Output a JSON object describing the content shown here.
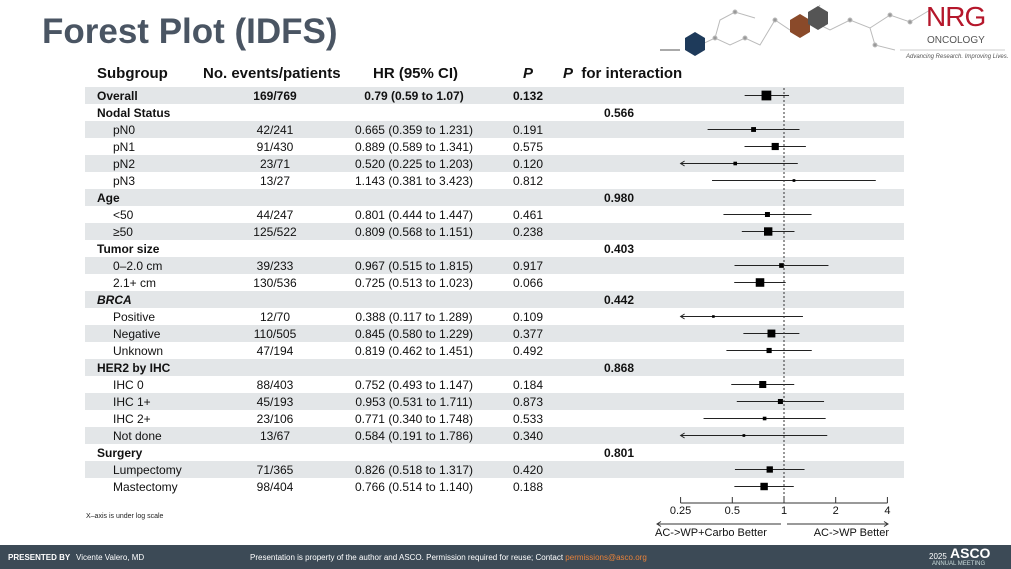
{
  "header": {
    "title": "Forest Plot (IDFS)",
    "logo": {
      "name": "NRG",
      "sub": "ONCOLOGY",
      "tagline": "Advancing Research. Improving Lives."
    }
  },
  "columns": {
    "subgroup": "Subgroup",
    "events": "No. events/patients",
    "hr": "HR (95% CI)",
    "p": "P",
    "p_interaction": "for interaction"
  },
  "chart_data": {
    "type": "forest",
    "x_scale": "log",
    "xlim": [
      0.25,
      4
    ],
    "xticks": [
      "0.25",
      "0.5",
      "1",
      "2",
      "4"
    ],
    "reference_line": 1,
    "left_label": "AC->WP+Carbo Better",
    "right_label": "AC->WP Better",
    "note": "X–axis is under log scale",
    "rows": [
      {
        "label": "Overall",
        "level": "overall",
        "events": "169/769",
        "hr_text": "0.79 (0.59 to 1.07)",
        "p": "0.132",
        "hr": 0.79,
        "lo": 0.59,
        "hi": 1.07
      },
      {
        "label": "Nodal Status",
        "level": "group",
        "p_int": "0.566"
      },
      {
        "label": "pN0",
        "events": "42/241",
        "hr_text": "0.665 (0.359 to 1.231)",
        "p": "0.191",
        "hr": 0.665,
        "lo": 0.359,
        "hi": 1.231
      },
      {
        "label": "pN1",
        "events": "91/430",
        "hr_text": "0.889 (0.589 to 1.341)",
        "p": "0.575",
        "hr": 0.889,
        "lo": 0.589,
        "hi": 1.341
      },
      {
        "label": "pN2",
        "events": "23/71",
        "hr_text": "0.520 (0.225 to 1.203)",
        "p": "0.120",
        "hr": 0.52,
        "lo": 0.225,
        "hi": 1.203
      },
      {
        "label": "pN3",
        "events": "13/27",
        "hr_text": "1.143 (0.381 to 3.423)",
        "p": "0.812",
        "hr": 1.143,
        "lo": 0.381,
        "hi": 3.423
      },
      {
        "label": "Age",
        "level": "group",
        "p_int": "0.980"
      },
      {
        "label": "<50",
        "events": "44/247",
        "hr_text": "0.801 (0.444 to 1.447)",
        "p": "0.461",
        "hr": 0.801,
        "lo": 0.444,
        "hi": 1.447
      },
      {
        "label": "≥50",
        "events": "125/522",
        "hr_text": "0.809 (0.568 to 1.151)",
        "p": "0.238",
        "hr": 0.809,
        "lo": 0.568,
        "hi": 1.151
      },
      {
        "label": "Tumor size",
        "level": "group",
        "p_int": "0.403"
      },
      {
        "label": "0–2.0 cm",
        "events": "39/233",
        "hr_text": "0.967 (0.515 to 1.815)",
        "p": "0.917",
        "hr": 0.967,
        "lo": 0.515,
        "hi": 1.815
      },
      {
        "label": "2.1+ cm",
        "events": "130/536",
        "hr_text": "0.725 (0.513 to 1.023)",
        "p": "0.066",
        "hr": 0.725,
        "lo": 0.513,
        "hi": 1.023
      },
      {
        "label": "BRCA",
        "level": "group",
        "italic": true,
        "p_int": "0.442"
      },
      {
        "label": "Positive",
        "events": "12/70",
        "hr_text": "0.388 (0.117 to 1.289)",
        "p": "0.109",
        "hr": 0.388,
        "lo": 0.117,
        "hi": 1.289
      },
      {
        "label": "Negative",
        "events": "110/505",
        "hr_text": "0.845 (0.580 to 1.229)",
        "p": "0.377",
        "hr": 0.845,
        "lo": 0.58,
        "hi": 1.229
      },
      {
        "label": "Unknown",
        "events": "47/194",
        "hr_text": "0.819 (0.462 to 1.451)",
        "p": "0.492",
        "hr": 0.819,
        "lo": 0.462,
        "hi": 1.451
      },
      {
        "label": "HER2 by IHC",
        "level": "group",
        "p_int": "0.868"
      },
      {
        "label": "IHC 0",
        "events": "88/403",
        "hr_text": "0.752 (0.493 to 1.147)",
        "p": "0.184",
        "hr": 0.752,
        "lo": 0.493,
        "hi": 1.147
      },
      {
        "label": "IHC 1+",
        "events": "45/193",
        "hr_text": "0.953 (0.531 to 1.711)",
        "p": "0.873",
        "hr": 0.953,
        "lo": 0.531,
        "hi": 1.711
      },
      {
        "label": "IHC 2+",
        "events": "23/106",
        "hr_text": "0.771 (0.340 to 1.748)",
        "p": "0.533",
        "hr": 0.771,
        "lo": 0.34,
        "hi": 1.748
      },
      {
        "label": "Not done",
        "events": "13/67",
        "hr_text": "0.584 (0.191 to 1.786)",
        "p": "0.340",
        "hr": 0.584,
        "lo": 0.191,
        "hi": 1.786
      },
      {
        "label": "Surgery",
        "level": "group",
        "p_int": "0.801"
      },
      {
        "label": "Lumpectomy",
        "events": "71/365",
        "hr_text": "0.826 (0.518 to 1.317)",
        "p": "0.420",
        "hr": 0.826,
        "lo": 0.518,
        "hi": 1.317
      },
      {
        "label": "Mastectomy",
        "events": "98/404",
        "hr_text": "0.766 (0.514 to 1.140)",
        "p": "0.188",
        "hr": 0.766,
        "lo": 0.514,
        "hi": 1.14
      }
    ]
  },
  "footer": {
    "presented_by": "PRESENTED BY",
    "presenter": "Vicente Valero, MD",
    "notice": "Presentation is property of the author and ASCO. Permission required for reuse; Contact",
    "email": "permissions@asco.org",
    "year": "2025",
    "brand": "ASCO",
    "meeting": "ANNUAL MEETING",
    "email_color": "#e8823a"
  }
}
